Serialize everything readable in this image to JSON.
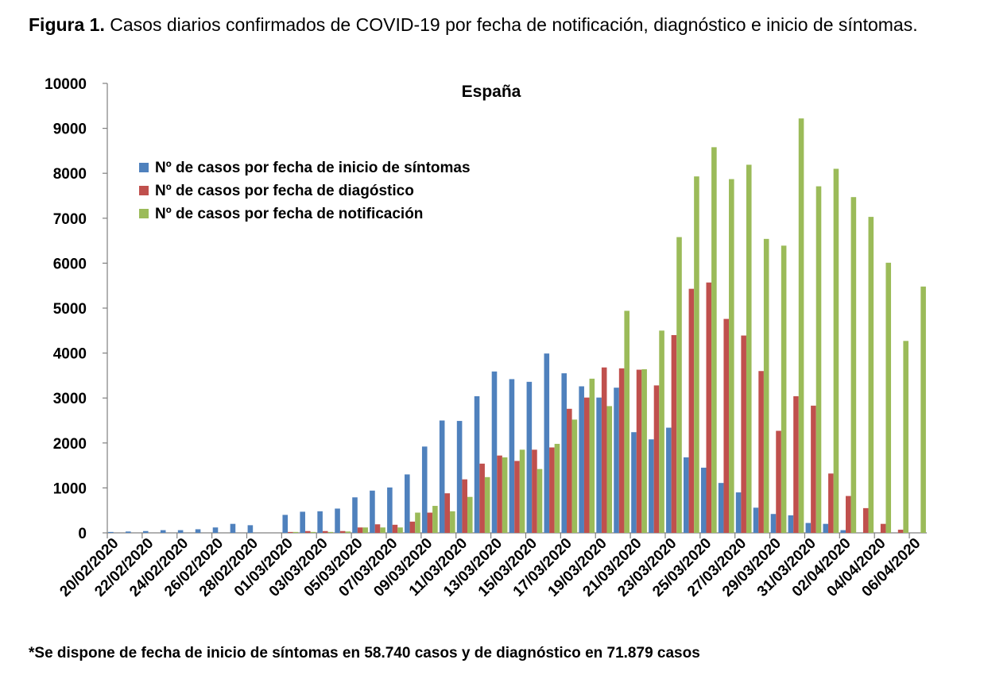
{
  "caption": {
    "label": "Figura 1.",
    "text": "Casos diarios confirmados de COVID-19 por fecha de notificación, diagnóstico e inicio de síntomas."
  },
  "footnote": "*Se dispone de fecha de inicio de síntomas en 58.740 casos y de diagnóstico en 71.879 casos",
  "chart_data": {
    "type": "bar",
    "title": "España",
    "xlabel": "",
    "ylabel": "",
    "ylim": [
      0,
      10000
    ],
    "yticks": [
      "0",
      "1000",
      "2000",
      "3000",
      "4000",
      "5000",
      "6000",
      "7000",
      "8000",
      "9000",
      "10000"
    ],
    "legend_position": "top-left",
    "categories": [
      "20/02/2020",
      "21/02/2020",
      "22/02/2020",
      "23/02/2020",
      "24/02/2020",
      "25/02/2020",
      "26/02/2020",
      "27/02/2020",
      "28/02/2020",
      "29/02/2020",
      "01/03/2020",
      "02/03/2020",
      "03/03/2020",
      "04/03/2020",
      "05/03/2020",
      "06/03/2020",
      "07/03/2020",
      "08/03/2020",
      "09/03/2020",
      "10/03/2020",
      "11/03/2020",
      "12/03/2020",
      "13/03/2020",
      "14/03/2020",
      "15/03/2020",
      "16/03/2020",
      "17/03/2020",
      "18/03/2020",
      "19/03/2020",
      "20/03/2020",
      "21/03/2020",
      "22/03/2020",
      "23/03/2020",
      "24/03/2020",
      "25/03/2020",
      "26/03/2020",
      "27/03/2020",
      "28/03/2020",
      "29/03/2020",
      "30/03/2020",
      "31/03/2020",
      "01/04/2020",
      "02/04/2020",
      "03/04/2020",
      "04/04/2020",
      "05/04/2020",
      "06/04/2020"
    ],
    "visible_tick_labels": [
      "20/02/2020",
      "22/02/2020",
      "24/02/2020",
      "26/02/2020",
      "28/02/2020",
      "01/03/2020",
      "03/03/2020",
      "05/03/2020",
      "07/03/2020",
      "09/03/2020",
      "11/03/2020",
      "13/03/2020",
      "15/03/2020",
      "17/03/2020",
      "19/03/2020",
      "21/03/2020",
      "23/03/2020",
      "25/03/2020",
      "27/03/2020",
      "29/03/2020",
      "31/03/2020",
      "02/04/2020",
      "04/04/2020",
      "06/04/2020"
    ],
    "series": [
      {
        "name": "Nº de casos por fecha de inicio de síntomas",
        "color": "#4f81bd",
        "values": [
          20,
          30,
          40,
          60,
          60,
          80,
          120,
          200,
          170,
          0,
          400,
          470,
          480,
          540,
          790,
          940,
          1010,
          1300,
          1920,
          2500,
          2490,
          3040,
          3590,
          3420,
          3360,
          3990,
          3550,
          3260,
          3010,
          3230,
          2240,
          2080,
          2340,
          1680,
          1450,
          1110,
          900,
          560,
          420,
          390,
          220,
          200,
          60,
          0,
          0,
          0,
          0
        ]
      },
      {
        "name": "Nº de casos por fecha de diagóstico",
        "color": "#c0504d",
        "values": [
          0,
          0,
          0,
          0,
          0,
          0,
          0,
          0,
          0,
          0,
          20,
          40,
          40,
          40,
          120,
          190,
          180,
          250,
          450,
          880,
          1190,
          1540,
          1720,
          1600,
          1850,
          1900,
          2760,
          3010,
          3680,
          3660,
          3630,
          3280,
          4400,
          5430,
          5570,
          4760,
          4390,
          3600,
          2270,
          3040,
          2830,
          1320,
          820,
          550,
          200,
          70,
          0
        ]
      },
      {
        "name": "Nº de casos por fecha de notificación",
        "color": "#9bbb59",
        "values": [
          0,
          0,
          0,
          0,
          0,
          0,
          0,
          0,
          0,
          0,
          20,
          20,
          20,
          30,
          120,
          120,
          120,
          450,
          600,
          480,
          800,
          1240,
          1680,
          1850,
          1420,
          1980,
          2520,
          3430,
          2820,
          4940,
          3640,
          4500,
          6580,
          7930,
          8580,
          7870,
          8190,
          6540,
          6390,
          9220,
          7710,
          8100,
          7470,
          7030,
          6010,
          4270,
          5480
        ]
      }
    ]
  }
}
